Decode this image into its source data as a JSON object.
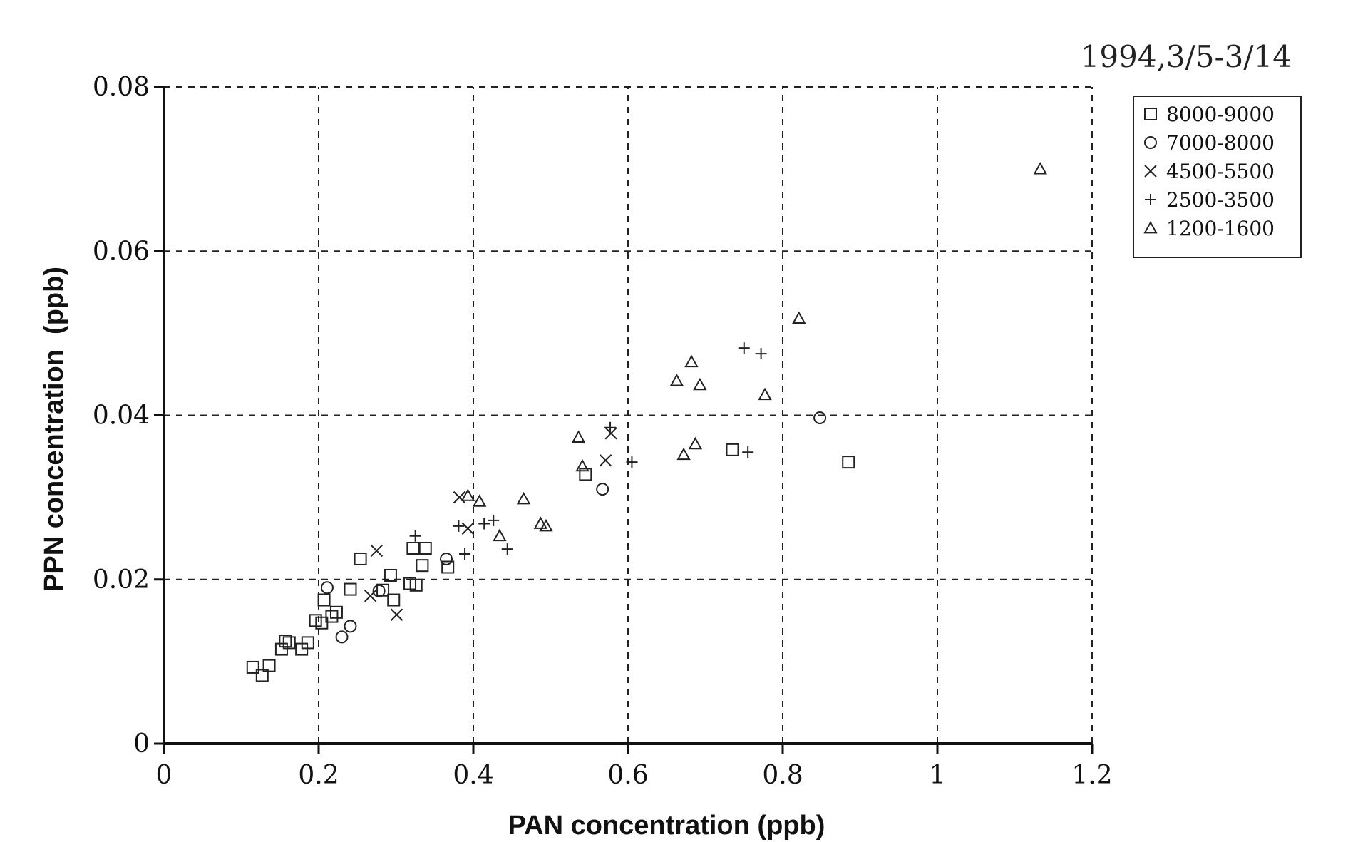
{
  "chart_data": {
    "type": "scatter",
    "title": "1994,3/5-3/14",
    "xlabel": "PAN concentration (ppb)",
    "ylabel": "PPN concentration  (ppb)",
    "xlim": [
      0,
      1.2
    ],
    "ylim": [
      0,
      0.08
    ],
    "x_ticks": [
      "0",
      "0.2",
      "0.4",
      "0.6",
      "0.8",
      "1",
      "1.2"
    ],
    "y_ticks": [
      "0",
      "0.02",
      "0.04",
      "0.06",
      "0.08"
    ],
    "grid": true,
    "legend_position": "right",
    "series": [
      {
        "name": "8000-9000",
        "marker": "square",
        "points": [
          [
            0.115,
            0.0093
          ],
          [
            0.127,
            0.0083
          ],
          [
            0.136,
            0.0095
          ],
          [
            0.152,
            0.0115
          ],
          [
            0.157,
            0.0125
          ],
          [
            0.162,
            0.0123
          ],
          [
            0.178,
            0.0115
          ],
          [
            0.186,
            0.0123
          ],
          [
            0.196,
            0.015
          ],
          [
            0.204,
            0.0147
          ],
          [
            0.207,
            0.0175
          ],
          [
            0.217,
            0.0155
          ],
          [
            0.223,
            0.016
          ],
          [
            0.241,
            0.0188
          ],
          [
            0.254,
            0.0225
          ],
          [
            0.283,
            0.0187
          ],
          [
            0.293,
            0.0205
          ],
          [
            0.297,
            0.0175
          ],
          [
            0.318,
            0.0195
          ],
          [
            0.322,
            0.0238
          ],
          [
            0.326,
            0.0193
          ],
          [
            0.334,
            0.0217
          ],
          [
            0.338,
            0.0238
          ],
          [
            0.367,
            0.0215
          ],
          [
            0.545,
            0.0328
          ],
          [
            0.735,
            0.0358
          ],
          [
            0.885,
            0.0343
          ]
        ]
      },
      {
        "name": "7000-8000",
        "marker": "circle",
        "points": [
          [
            0.211,
            0.019
          ],
          [
            0.23,
            0.013
          ],
          [
            0.241,
            0.0143
          ],
          [
            0.278,
            0.0186
          ],
          [
            0.365,
            0.0225
          ],
          [
            0.567,
            0.031
          ],
          [
            0.848,
            0.0397
          ]
        ]
      },
      {
        "name": "4500-5500",
        "marker": "x",
        "points": [
          [
            0.267,
            0.018
          ],
          [
            0.275,
            0.0235
          ],
          [
            0.301,
            0.0157
          ],
          [
            0.382,
            0.03
          ],
          [
            0.393,
            0.0262
          ],
          [
            0.571,
            0.0345
          ],
          [
            0.578,
            0.0378
          ]
        ]
      },
      {
        "name": "2500-3500",
        "marker": "plus",
        "points": [
          [
            0.325,
            0.0253
          ],
          [
            0.381,
            0.0265
          ],
          [
            0.389,
            0.0231
          ],
          [
            0.414,
            0.0268
          ],
          [
            0.426,
            0.0272
          ],
          [
            0.444,
            0.0237
          ],
          [
            0.577,
            0.0385
          ],
          [
            0.605,
            0.0343
          ],
          [
            0.75,
            0.0482
          ],
          [
            0.755,
            0.0355
          ],
          [
            0.772,
            0.0475
          ]
        ]
      },
      {
        "name": "1200-1600",
        "marker": "triangle",
        "points": [
          [
            0.393,
            0.0302
          ],
          [
            0.408,
            0.0295
          ],
          [
            0.434,
            0.0253
          ],
          [
            0.465,
            0.0298
          ],
          [
            0.487,
            0.0268
          ],
          [
            0.494,
            0.0265
          ],
          [
            0.536,
            0.0373
          ],
          [
            0.541,
            0.0338
          ],
          [
            0.663,
            0.0442
          ],
          [
            0.672,
            0.0352
          ],
          [
            0.682,
            0.0465
          ],
          [
            0.687,
            0.0365
          ],
          [
            0.693,
            0.0437
          ],
          [
            0.777,
            0.0425
          ],
          [
            0.821,
            0.0518
          ],
          [
            1.133,
            0.07
          ]
        ]
      }
    ]
  }
}
